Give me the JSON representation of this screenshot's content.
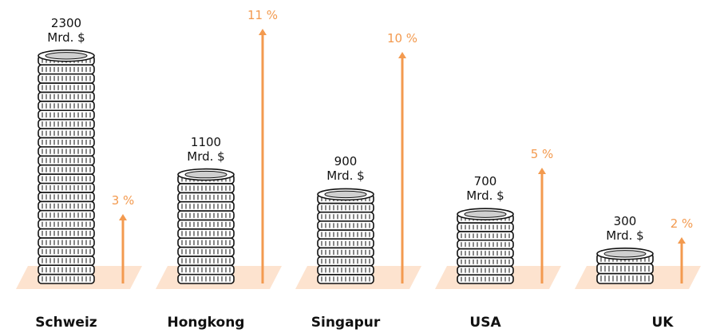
{
  "chart_data": {
    "type": "pictograph",
    "categories": [
      "Schweiz",
      "Hongkong",
      "Singapur",
      "USA",
      "UK"
    ],
    "series": [
      {
        "values": [
          2300,
          1100,
          900,
          700,
          300
        ],
        "value_labels": [
          "2300\nMrd. $",
          "1100\nMrd. $",
          "900\nMrd. $",
          "700\nMrd. $",
          "300\nMrd. $"
        ],
        "color": "#111111"
      },
      {
        "values": [
          3,
          11,
          10,
          5,
          2
        ],
        "value_labels": [
          "3 %",
          "11 %",
          "10 %",
          "5 %",
          "2 %"
        ],
        "color": "#f39a4f"
      }
    ]
  }
}
